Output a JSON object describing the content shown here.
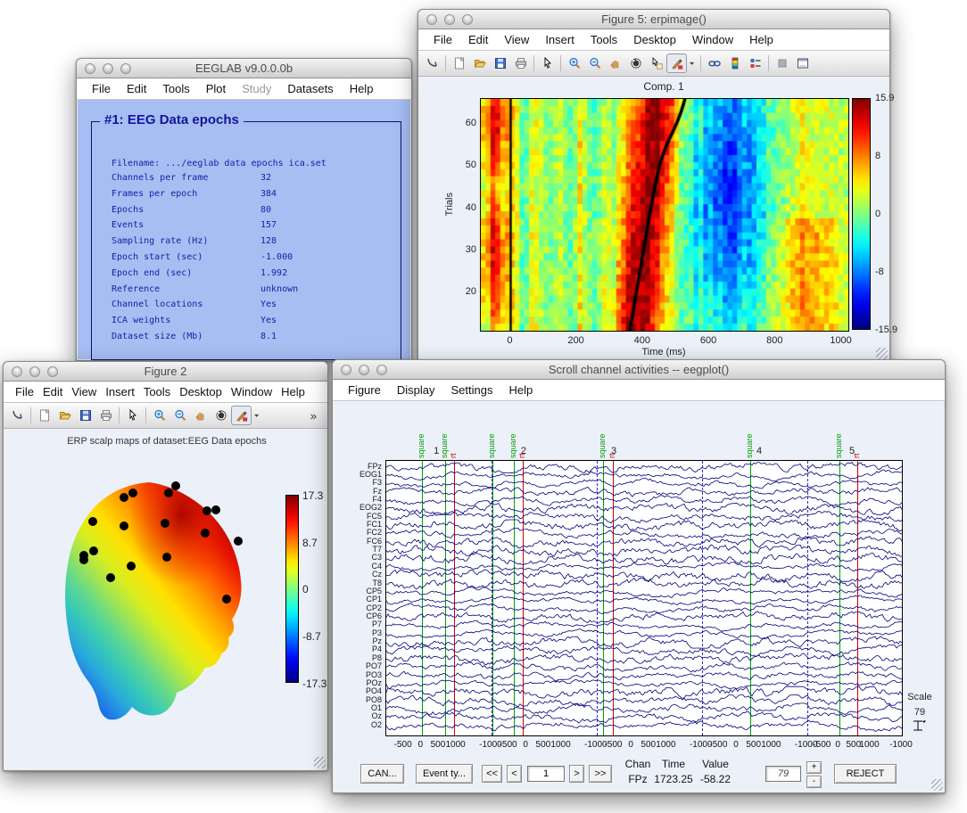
{
  "eeglab": {
    "window_title": "EEGLAB v9.0.0.0b",
    "menus": [
      "File",
      "Edit",
      "Tools",
      "Plot",
      "Study",
      "Datasets",
      "Help"
    ],
    "disabled_menu": "Study",
    "panel_title": "#1: EEG Data epochs",
    "filename_label": "Filename: .../eeglab data epochs ica.set",
    "info": [
      {
        "label": "Channels per frame",
        "value": "32"
      },
      {
        "label": "Frames per epoch",
        "value": "384"
      },
      {
        "label": "Epochs",
        "value": "80"
      },
      {
        "label": "Events",
        "value": "157"
      },
      {
        "label": "Sampling rate (Hz)",
        "value": "128"
      },
      {
        "label": "Epoch start (sec)",
        "value": "-1.000"
      },
      {
        "label": "Epoch end (sec)",
        "value": "1.992"
      },
      {
        "label": "Reference",
        "value": "unknown"
      },
      {
        "label": "Channel locations",
        "value": "Yes"
      },
      {
        "label": "ICA weights",
        "value": "Yes"
      },
      {
        "label": "Dataset size (Mb)",
        "value": "8.1"
      }
    ]
  },
  "figure5": {
    "window_title": "Figure 5:  erpimage()",
    "menus": [
      "File",
      "Edit",
      "View",
      "Insert",
      "Tools",
      "Desktop",
      "Window",
      "Help"
    ],
    "chart": {
      "type": "heatmap",
      "title": "Comp. 1",
      "xlabel": "Time (ms)",
      "ylabel": "Trials",
      "xticks": [
        "0",
        "200",
        "400",
        "600",
        "800",
        "1000"
      ],
      "yticks": [
        "60",
        "50",
        "40",
        "30",
        "20"
      ],
      "x_range_ms": [
        -90,
        1020
      ],
      "colorbar_ticks": [
        "15.9",
        "8",
        "0",
        "-8",
        "-15.9"
      ],
      "clim": [
        -15.9,
        15.9
      ],
      "bands": [
        {
          "center_ms": -45,
          "width_ms": 27,
          "amp": 8.5
        },
        {
          "center_ms": 400,
          "width_ms": 50,
          "amp": 14.5,
          "tilt_ms": 55
        },
        {
          "center_ms": 660,
          "width_ms": 85,
          "amp": -10
        },
        {
          "center_ms": 900,
          "width_ms": 70,
          "amp": 5
        }
      ],
      "rt_curve": {
        "start_ms": 360,
        "mid_ms": 422,
        "end_ms": 528
      },
      "stim_line_ms": 0
    }
  },
  "figure2": {
    "window_title": "Figure 2",
    "menus": [
      "File",
      "Edit",
      "View",
      "Insert",
      "Tools",
      "Desktop",
      "Window",
      "Help"
    ],
    "caption": "ERP scalp maps of dataset:EEG Data epochs",
    "colorbar_ticks": [
      "17.3",
      "8.7",
      "0",
      "-8.7",
      "-17.3"
    ],
    "clim": [
      -17.3,
      17.3
    ]
  },
  "eegplot": {
    "window_title": "Scroll channel activities -- eegplot()",
    "menus": [
      "Figure",
      "Display",
      "Settings",
      "Help"
    ],
    "channels": [
      "FPz",
      "EOG1",
      "F3",
      "Fz",
      "F4",
      "EOG2",
      "FC5",
      "FC1",
      "FC2",
      "FC6",
      "T7",
      "C3",
      "C4",
      "Cz",
      "T8",
      "CP5",
      "CP1",
      "CP2",
      "CP6",
      "P7",
      "P3",
      "Pz",
      "P4",
      "P8",
      "PO7",
      "PO3",
      "POz",
      "PO4",
      "PO8",
      "O1",
      "Oz",
      "O2"
    ],
    "events": [
      {
        "f": 0.069,
        "type": "square",
        "label": "square"
      },
      {
        "f": 0.114,
        "type": "square",
        "label": "square"
      },
      {
        "f": 0.131,
        "type": "rt",
        "label": "rt"
      },
      {
        "f": 0.206,
        "type": "square",
        "label": "square"
      },
      {
        "f": 0.247,
        "type": "square",
        "label": "square"
      },
      {
        "f": 0.265,
        "type": "rt",
        "label": "rt"
      },
      {
        "f": 0.42,
        "type": "square",
        "label": "square"
      },
      {
        "f": 0.439,
        "type": "rt",
        "label": "rt"
      },
      {
        "f": 0.706,
        "type": "square",
        "label": "square"
      },
      {
        "f": 0.879,
        "type": "square",
        "label": "square"
      },
      {
        "f": 0.913,
        "type": "rt",
        "label": "rt"
      }
    ],
    "epoch_numbers": [
      {
        "f": 0.099,
        "label": "1"
      },
      {
        "f": 0.268,
        "label": "2"
      },
      {
        "f": 0.443,
        "label": "3"
      },
      {
        "f": 0.725,
        "label": "4"
      },
      {
        "f": 0.905,
        "label": "5"
      }
    ],
    "epoch_boundaries_f": [
      0.204,
      0.408,
      0.612,
      0.816
    ],
    "xtick_labels": [
      "-500",
      "0",
      "500",
      "1000"
    ],
    "boundary_tick_label": "-1000",
    "scale": {
      "label": "Scale",
      "value": "79"
    },
    "controls": {
      "cancel": "CAN...",
      "event_types": "Event ty...",
      "fastback": "<<",
      "back": "<",
      "page_value": "1",
      "fwd": ">",
      "fastfwd": ">>",
      "chan_header": "Chan",
      "time_header": "Time",
      "value_header": "Value",
      "chan_value": "FPz",
      "time_value": "1723.25",
      "value_value": "-58.22",
      "winlen_value": "79",
      "inc": "+",
      "dec": "-",
      "reject": "REJECT"
    }
  }
}
